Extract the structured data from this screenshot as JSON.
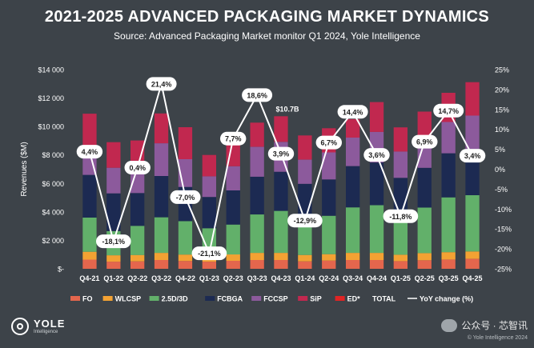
{
  "header": {
    "title": "2021-2025 ADVANCED PACKAGING MARKET DYNAMICS",
    "subtitle": "Source: Advanced Packaging Market monitor Q1 2024, Yole Intelligence"
  },
  "chart_data": {
    "type": "bar",
    "stacked": true,
    "title": "2021-2025 ADVANCED PACKAGING MARKET DYNAMICS",
    "ylabel": "Revenues ($M)",
    "ylim": [
      0,
      14000
    ],
    "y_ticks": [
      "$14 000",
      "$12 000",
      "$10 000",
      "$8 000",
      "$6 000",
      "$4 000",
      "$2 000",
      "$-"
    ],
    "y2_ticks": [
      "25%",
      "20%",
      "15%",
      "10%",
      "5%",
      "0%",
      "-5%",
      "-10%",
      "-15%",
      "-20%",
      "-25%"
    ],
    "y2lim": [
      -25,
      25
    ],
    "categories": [
      "Q4-21",
      "Q1-22",
      "Q2-22",
      "Q3-22",
      "Q4-22",
      "Q1-23",
      "Q2-23",
      "Q3-23",
      "Q4-23",
      "Q1-24",
      "Q2-24",
      "Q3-24",
      "Q4-24",
      "Q1-25",
      "Q2-25",
      "Q3-25",
      "Q4-25"
    ],
    "colors": {
      "FO": "#e4664d",
      "WLCSP": "#f3a233",
      "2.5D/3D": "#62b06a",
      "FCBGA": "#1c2a52",
      "FCCSP": "#8c5a9c",
      "SiP": "#c1284f",
      "ED*": "#e02424"
    },
    "series": [
      {
        "name": "FO",
        "values": [
          650,
          500,
          520,
          620,
          550,
          500,
          560,
          620,
          620,
          520,
          580,
          620,
          620,
          540,
          600,
          650,
          700
        ]
      },
      {
        "name": "WLCSP",
        "values": [
          550,
          450,
          450,
          500,
          450,
          400,
          450,
          500,
          500,
          450,
          450,
          500,
          500,
          450,
          500,
          520,
          520
        ]
      },
      {
        "name": "2.5D/3D",
        "values": [
          2400,
          1700,
          2050,
          2500,
          2350,
          1950,
          2100,
          2700,
          2950,
          2600,
          2700,
          3200,
          3350,
          2800,
          3200,
          3850,
          3950
        ]
      },
      {
        "name": "FCBGA",
        "values": [
          3000,
          2650,
          2300,
          2900,
          2400,
          2200,
          2400,
          2650,
          2750,
          2400,
          2550,
          2900,
          3000,
          2600,
          2800,
          3100,
          3250
        ]
      },
      {
        "name": "FCCSP",
        "values": [
          2000,
          1800,
          1700,
          2300,
          1950,
          1450,
          1700,
          2100,
          2100,
          1700,
          1900,
          2000,
          2150,
          1850,
          2000,
          2200,
          2350
        ]
      },
      {
        "name": "SiP",
        "values": [
          2300,
          1800,
          2000,
          2100,
          2250,
          1500,
          2000,
          1700,
          1800,
          1700,
          1700,
          1300,
          2100,
          1700,
          1950,
          2050,
          2350
        ]
      },
      {
        "name": "ED*",
        "values": [
          0,
          0,
          0,
          0,
          0,
          0,
          0,
          0,
          0,
          0,
          0,
          0,
          0,
          0,
          0,
          0,
          0
        ]
      }
    ],
    "total_label": {
      "index": 8,
      "text": "$10.7B"
    },
    "yoy": {
      "name": "YoY change (%)",
      "values": [
        4.4,
        -18.1,
        0.4,
        21.4,
        -7.0,
        -21.1,
        7.7,
        18.6,
        3.9,
        -12.9,
        6.7,
        14.4,
        3.6,
        -11.8,
        6.9,
        14.7,
        3.4
      ],
      "labels": [
        "4,4%",
        "-18,1%",
        "0,4%",
        "21,4%",
        "-7,0%",
        "-21,1%",
        "7,7%",
        "18,6%",
        "3,9%",
        "-12,9%",
        "6,7%",
        "14,4%",
        "3,6%",
        "-11,8%",
        "6,9%",
        "14,7%",
        "3,4%"
      ]
    },
    "legend": [
      "FO",
      "WLCSP",
      "2.5D/3D",
      "FCBGA",
      "FCCSP",
      "SiP",
      "ED*",
      "TOTAL",
      "YoY change (%)"
    ]
  },
  "branding": {
    "logo_name": "YOLE",
    "logo_sub": "Intelligence",
    "watermark": "公众号 · 芯智讯",
    "credit": "© Yole Intelligence 2024"
  }
}
